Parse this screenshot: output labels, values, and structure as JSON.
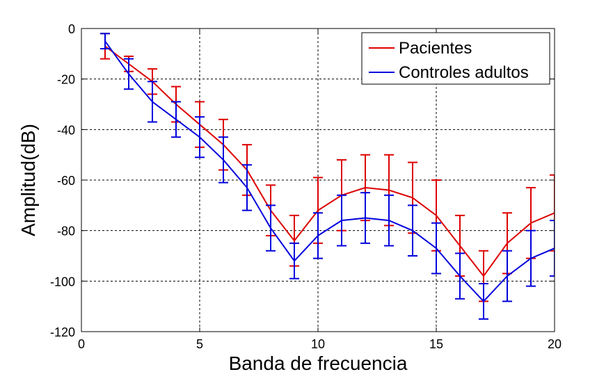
{
  "chart_data": {
    "type": "line",
    "xlabel": "Banda de frecuencia",
    "ylabel": "Amplitud(dB)",
    "xlim": [
      0,
      20
    ],
    "ylim": [
      -120,
      0
    ],
    "xticks": [
      0,
      5,
      10,
      15,
      20
    ],
    "yticks": [
      0,
      -20,
      -40,
      -60,
      -80,
      -100,
      -120
    ],
    "grid": true,
    "legend_position": "top-right",
    "x": [
      1,
      2,
      3,
      4,
      5,
      6,
      7,
      8,
      9,
      10,
      11,
      12,
      13,
      14,
      15,
      16,
      17,
      18,
      19,
      20
    ],
    "series": [
      {
        "name": "Pacientes",
        "color": "#dd0000",
        "values": [
          -7,
          -14,
          -21,
          -30,
          -38,
          -46,
          -56,
          -72,
          -84,
          -72,
          -66,
          -63,
          -64,
          -67,
          -74,
          -86,
          -98,
          -85,
          -77,
          -73
        ],
        "error": [
          5,
          3,
          5,
          7,
          9,
          10,
          10,
          10,
          10,
          13,
          14,
          13,
          14,
          14,
          14,
          12,
          10,
          12,
          14,
          15
        ]
      },
      {
        "name": "Controles adultos",
        "color": "#0000dd",
        "values": [
          -5,
          -18,
          -29,
          -36,
          -43,
          -52,
          -63,
          -79,
          -92,
          -82,
          -76,
          -75,
          -76,
          -80,
          -87,
          -98,
          -108,
          -98,
          -91,
          -87
        ],
        "error": [
          3,
          6,
          8,
          7,
          8,
          9,
          9,
          9,
          7,
          9,
          10,
          10,
          10,
          10,
          10,
          9,
          7,
          10,
          11,
          11
        ]
      }
    ]
  }
}
